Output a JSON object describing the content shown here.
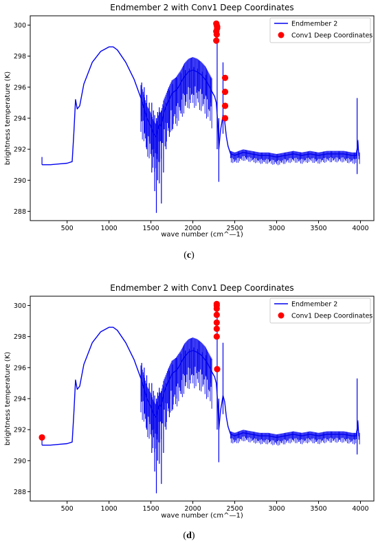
{
  "panels": [
    {
      "caption_open": "(",
      "caption_letter": "c",
      "caption_close": ")"
    },
    {
      "caption_open": "(",
      "caption_letter": "d",
      "caption_close": ")"
    }
  ],
  "colors": {
    "line": "#0000ee",
    "points": "#ff0000"
  },
  "chart_data": [
    {
      "type": "line",
      "title": "Endmember 2 with Conv1 Deep Coordinates",
      "xlabel": "wave number (cm^—1)",
      "ylabel": "brightness temperature (K)",
      "xlim": [
        60,
        4160
      ],
      "ylim": [
        287.4,
        300.6
      ],
      "xticks": [
        500,
        1000,
        1500,
        2000,
        2500,
        3000,
        3500,
        4000
      ],
      "yticks": [
        288,
        290,
        292,
        294,
        296,
        298,
        300
      ],
      "legend": {
        "position": "top-right",
        "entries": [
          "Endmember 2",
          "Conv1 Deep Coordinates"
        ]
      },
      "series": [
        {
          "name": "Endmember 2",
          "kind": "line",
          "x": [
            200,
            300,
            400,
            500,
            560,
            580,
            600,
            620,
            650,
            700,
            800,
            900,
            1000,
            1050,
            1100,
            1200,
            1300,
            1400,
            1450,
            1500,
            1530,
            1560,
            1580,
            1600,
            1620,
            1650,
            1700,
            1750,
            1800,
            1850,
            1900,
            1950,
            2000,
            2050,
            2100,
            2150,
            2200,
            2230,
            2260,
            2280,
            2300,
            2310,
            2330,
            2360,
            2380,
            2400,
            2420,
            2450,
            2500,
            2600,
            2700,
            2800,
            2900,
            3000,
            3100,
            3200,
            3300,
            3400,
            3500,
            3600,
            3700,
            3800,
            3900,
            3950,
            3970,
            3980,
            3990
          ],
          "y": [
            291.0,
            291.0,
            291.05,
            291.1,
            291.2,
            293.0,
            295.2,
            294.6,
            294.8,
            296.2,
            297.6,
            298.3,
            298.6,
            298.6,
            298.4,
            297.6,
            296.5,
            295.0,
            294.0,
            293.5,
            293.0,
            292.8,
            293.2,
            293.6,
            293.5,
            294.3,
            295.0,
            295.6,
            295.8,
            296.2,
            296.7,
            297.0,
            297.1,
            297.0,
            296.8,
            296.5,
            296.0,
            295.7,
            295.4,
            295.0,
            293.5,
            292.0,
            293.2,
            294.2,
            293.8,
            292.8,
            292.2,
            291.7,
            291.6,
            291.8,
            291.7,
            291.6,
            291.6,
            291.5,
            291.6,
            291.7,
            291.6,
            291.7,
            291.6,
            291.7,
            291.7,
            291.7,
            291.6,
            291.6,
            292.5,
            291.6,
            291.6
          ],
          "spikes": [
            {
              "x": 200,
              "low": 291.0,
              "high": 291.5
            },
            {
              "x": 1390,
              "low": 293.8,
              "high": 296.3
            },
            {
              "x": 1420,
              "low": 293.0,
              "high": 296.0
            },
            {
              "x": 1450,
              "low": 292.0,
              "high": 295.5
            },
            {
              "x": 1480,
              "low": 292.5,
              "high": 295.0
            },
            {
              "x": 1510,
              "low": 290.5,
              "high": 295.0
            },
            {
              "x": 1530,
              "low": 291.5,
              "high": 294.5
            },
            {
              "x": 1545,
              "low": 289.3,
              "high": 294.2
            },
            {
              "x": 1565,
              "low": 287.9,
              "high": 294.0
            },
            {
              "x": 1580,
              "low": 290.0,
              "high": 294.4
            },
            {
              "x": 1600,
              "low": 289.8,
              "high": 294.7
            },
            {
              "x": 1625,
              "low": 288.5,
              "high": 294.5
            },
            {
              "x": 1650,
              "low": 290.5,
              "high": 294.8
            },
            {
              "x": 1680,
              "low": 292.0,
              "high": 295.0
            },
            {
              "x": 1720,
              "low": 292.8,
              "high": 295.8
            },
            {
              "x": 1760,
              "low": 293.3,
              "high": 296.2
            },
            {
              "x": 1810,
              "low": 294.0,
              "high": 296.6
            },
            {
              "x": 1860,
              "low": 294.3,
              "high": 296.9
            },
            {
              "x": 1910,
              "low": 294.8,
              "high": 297.1
            },
            {
              "x": 1960,
              "low": 295.2,
              "high": 297.2
            },
            {
              "x": 2010,
              "low": 295.5,
              "high": 297.3
            },
            {
              "x": 2060,
              "low": 295.8,
              "high": 297.2
            },
            {
              "x": 2110,
              "low": 295.6,
              "high": 297.0
            },
            {
              "x": 2160,
              "low": 295.4,
              "high": 296.8
            },
            {
              "x": 2210,
              "low": 295.0,
              "high": 296.6
            },
            {
              "x": 2290,
              "low": 292.0,
              "high": 300.1
            },
            {
              "x": 2310,
              "low": 289.9,
              "high": 294.0
            },
            {
              "x": 2360,
              "low": 293.0,
              "high": 297.6
            },
            {
              "x": 3960,
              "low": 290.4,
              "high": 295.3
            }
          ]
        },
        {
          "name": "Conv1 Deep Coordinates",
          "kind": "scatter",
          "x": [
            2280,
            2285,
            2290,
            2280,
            2285,
            2280,
            2290,
            2385,
            2385,
            2385,
            2385
          ],
          "y": [
            300.1,
            300.0,
            299.8,
            299.6,
            299.4,
            299.0,
            299.9,
            296.6,
            295.7,
            294.8,
            294.0
          ]
        }
      ]
    },
    {
      "type": "line",
      "title": "Endmember 2 with Conv1 Deep Coordinates",
      "xlabel": "wave number (cm^—1)",
      "ylabel": "brightness temperature (K)",
      "xlim": [
        60,
        4160
      ],
      "ylim": [
        287.4,
        300.6
      ],
      "xticks": [
        500,
        1000,
        1500,
        2000,
        2500,
        3000,
        3500,
        4000
      ],
      "yticks": [
        288,
        290,
        292,
        294,
        296,
        298,
        300
      ],
      "legend": {
        "position": "top-right",
        "entries": [
          "Endmember 2",
          "Conv1 Deep Coordinates"
        ]
      },
      "series": [
        {
          "name": "Endmember 2",
          "kind": "line",
          "x": [
            200,
            300,
            400,
            500,
            560,
            580,
            600,
            620,
            650,
            700,
            800,
            900,
            1000,
            1050,
            1100,
            1200,
            1300,
            1400,
            1450,
            1500,
            1530,
            1560,
            1580,
            1600,
            1620,
            1650,
            1700,
            1750,
            1800,
            1850,
            1900,
            1950,
            2000,
            2050,
            2100,
            2150,
            2200,
            2230,
            2260,
            2280,
            2300,
            2310,
            2330,
            2360,
            2380,
            2400,
            2420,
            2450,
            2500,
            2600,
            2700,
            2800,
            2900,
            3000,
            3100,
            3200,
            3300,
            3400,
            3500,
            3600,
            3700,
            3800,
            3900,
            3950,
            3970,
            3980,
            3990
          ],
          "y": [
            291.0,
            291.0,
            291.05,
            291.1,
            291.2,
            293.0,
            295.2,
            294.6,
            294.8,
            296.2,
            297.6,
            298.3,
            298.6,
            298.6,
            298.4,
            297.6,
            296.5,
            295.0,
            294.0,
            293.5,
            293.0,
            292.8,
            293.2,
            293.6,
            293.5,
            294.3,
            295.0,
            295.6,
            295.8,
            296.2,
            296.7,
            297.0,
            297.1,
            297.0,
            296.8,
            296.5,
            296.0,
            295.7,
            295.4,
            295.0,
            293.5,
            292.0,
            293.2,
            294.2,
            293.8,
            292.8,
            292.2,
            291.7,
            291.6,
            291.8,
            291.7,
            291.6,
            291.6,
            291.5,
            291.6,
            291.7,
            291.6,
            291.7,
            291.6,
            291.7,
            291.7,
            291.7,
            291.6,
            291.6,
            292.5,
            291.6,
            291.6
          ],
          "spikes": [
            {
              "x": 200,
              "low": 291.0,
              "high": 291.5
            },
            {
              "x": 1390,
              "low": 293.8,
              "high": 296.3
            },
            {
              "x": 1420,
              "low": 293.0,
              "high": 296.0
            },
            {
              "x": 1450,
              "low": 292.0,
              "high": 295.5
            },
            {
              "x": 1480,
              "low": 292.5,
              "high": 295.0
            },
            {
              "x": 1510,
              "low": 290.5,
              "high": 295.0
            },
            {
              "x": 1530,
              "low": 291.5,
              "high": 294.5
            },
            {
              "x": 1545,
              "low": 289.3,
              "high": 294.2
            },
            {
              "x": 1565,
              "low": 287.9,
              "high": 294.0
            },
            {
              "x": 1580,
              "low": 290.0,
              "high": 294.4
            },
            {
              "x": 1600,
              "low": 289.8,
              "high": 294.7
            },
            {
              "x": 1625,
              "low": 288.5,
              "high": 294.5
            },
            {
              "x": 1650,
              "low": 290.5,
              "high": 294.8
            },
            {
              "x": 1680,
              "low": 292.0,
              "high": 295.0
            },
            {
              "x": 1720,
              "low": 292.8,
              "high": 295.8
            },
            {
              "x": 1760,
              "low": 293.3,
              "high": 296.2
            },
            {
              "x": 1810,
              "low": 294.0,
              "high": 296.6
            },
            {
              "x": 1860,
              "low": 294.3,
              "high": 296.9
            },
            {
              "x": 1910,
              "low": 294.8,
              "high": 297.1
            },
            {
              "x": 1960,
              "low": 295.2,
              "high": 297.2
            },
            {
              "x": 2010,
              "low": 295.5,
              "high": 297.3
            },
            {
              "x": 2060,
              "low": 295.8,
              "high": 297.2
            },
            {
              "x": 2110,
              "low": 295.6,
              "high": 297.0
            },
            {
              "x": 2160,
              "low": 295.4,
              "high": 296.8
            },
            {
              "x": 2210,
              "low": 295.0,
              "high": 296.6
            },
            {
              "x": 2290,
              "low": 292.0,
              "high": 300.1
            },
            {
              "x": 2310,
              "low": 289.9,
              "high": 294.0
            },
            {
              "x": 2360,
              "low": 293.0,
              "high": 297.6
            },
            {
              "x": 3960,
              "low": 290.4,
              "high": 295.3
            }
          ]
        },
        {
          "name": "Conv1 Deep Coordinates",
          "kind": "scatter",
          "x": [
            2285,
            2285,
            2285,
            2285,
            2285,
            2285,
            2285,
            2290,
            200
          ],
          "y": [
            300.1,
            300.0,
            299.8,
            299.4,
            298.9,
            298.5,
            298.0,
            295.9,
            291.5
          ]
        }
      ]
    }
  ]
}
